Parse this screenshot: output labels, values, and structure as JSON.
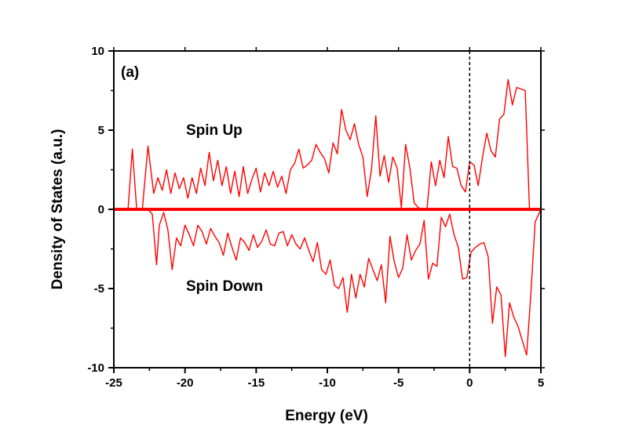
{
  "chart_data": {
    "type": "line",
    "panel_label": "(a)",
    "xlabel": "Energy (eV)",
    "ylabel": "Density of States (a.u.)",
    "xlim": [
      -25,
      5
    ],
    "ylim": [
      -10,
      10
    ],
    "x_ticks": [
      -25,
      -20,
      -15,
      -10,
      -5,
      0,
      5
    ],
    "y_ticks": [
      -10,
      -5,
      0,
      5,
      10
    ],
    "fermi_level": 0,
    "annotations": {
      "spin_up": "Spin Up",
      "spin_down": "Spin Down"
    },
    "colors": {
      "series": "#ff0000",
      "fermi": "#000000",
      "axes": "#000000"
    },
    "series": [
      {
        "name": "Spin Up",
        "x": [
          -25,
          -24,
          -23.7,
          -23.4,
          -23,
          -22.6,
          -22.2,
          -21.9,
          -21.6,
          -21.3,
          -21,
          -20.7,
          -20.4,
          -20.1,
          -19.8,
          -19.5,
          -19.2,
          -18.9,
          -18.6,
          -18.3,
          -18,
          -17.7,
          -17.4,
          -17.1,
          -16.8,
          -16.5,
          -16.2,
          -15.9,
          -15.6,
          -15.3,
          -15,
          -14.7,
          -14.4,
          -14.1,
          -13.8,
          -13.5,
          -13.2,
          -12.9,
          -12.6,
          -12.3,
          -12,
          -11.7,
          -11.4,
          -11.1,
          -10.8,
          -10.5,
          -10.2,
          -9.9,
          -9.6,
          -9.3,
          -9,
          -8.7,
          -8.4,
          -8.1,
          -7.8,
          -7.5,
          -7.2,
          -6.9,
          -6.6,
          -6.3,
          -6,
          -5.7,
          -5.4,
          -5.1,
          -4.8,
          -4.5,
          -4.2,
          -3.9,
          -3.6,
          -3.3,
          -3,
          -2.7,
          -2.4,
          -2.1,
          -1.8,
          -1.5,
          -1.2,
          -0.9,
          -0.6,
          -0.3,
          0,
          0.3,
          0.6,
          0.9,
          1.2,
          1.5,
          1.8,
          2.1,
          2.4,
          2.7,
          3,
          3.3,
          3.6,
          3.9,
          4.2,
          4.5,
          5
        ],
        "values": [
          0,
          0,
          3.8,
          0.1,
          0,
          4,
          1,
          2,
          1.2,
          2.5,
          1,
          2.3,
          1.3,
          2,
          0.7,
          2,
          1,
          2.6,
          1.5,
          3.6,
          1.8,
          3.1,
          1.5,
          2.7,
          1,
          2.4,
          0.8,
          2.7,
          1,
          1.9,
          2.6,
          1.1,
          2.3,
          1.5,
          2.4,
          1.4,
          2.1,
          1,
          2.5,
          2.9,
          3.8,
          2.6,
          2.8,
          3.1,
          4.1,
          3.6,
          3.2,
          2.3,
          4.2,
          3.5,
          6.3,
          5,
          4.4,
          5.4,
          4.1,
          3.3,
          0.8,
          2.5,
          5.9,
          2.1,
          3.4,
          1.7,
          3.3,
          2.6,
          0.1,
          4.1,
          2.6,
          0.4,
          0.1,
          0,
          0,
          3,
          1.5,
          3.1,
          2,
          4.6,
          2.7,
          2.6,
          1.5,
          1.1,
          3,
          2.8,
          1.5,
          3.3,
          4.8,
          3.7,
          3.3,
          5.7,
          6,
          8.2,
          6.6,
          7.7,
          7.6,
          7.5,
          0,
          0,
          0
        ]
      },
      {
        "name": "Spin Down",
        "x": [
          -25,
          -22.6,
          -22.3,
          -22,
          -21.8,
          -21.5,
          -21.2,
          -20.9,
          -20.6,
          -20.3,
          -20,
          -19.7,
          -19.4,
          -19.1,
          -18.8,
          -18.5,
          -18.2,
          -17.9,
          -17.6,
          -17.3,
          -17,
          -16.7,
          -16.4,
          -16.1,
          -15.8,
          -15.5,
          -15.2,
          -14.9,
          -14.6,
          -14.3,
          -14,
          -13.7,
          -13.4,
          -13.1,
          -12.8,
          -12.5,
          -12.2,
          -11.9,
          -11.6,
          -11.3,
          -11,
          -10.7,
          -10.4,
          -10.1,
          -9.8,
          -9.5,
          -9.2,
          -8.9,
          -8.6,
          -8.3,
          -8,
          -7.7,
          -7.4,
          -7.1,
          -6.8,
          -6.5,
          -6.2,
          -5.9,
          -5.6,
          -5.3,
          -5,
          -4.7,
          -4.4,
          -4.1,
          -3.8,
          -3.5,
          -3.2,
          -2.9,
          -2.6,
          -2.3,
          -2,
          -1.7,
          -1.4,
          -1.1,
          -0.8,
          -0.5,
          -0.2,
          0.1,
          0.4,
          0.7,
          1,
          1.3,
          1.6,
          1.9,
          2.2,
          2.5,
          2.8,
          3.1,
          3.4,
          3.7,
          4,
          4.3,
          4.6,
          5
        ],
        "values": [
          0,
          0,
          -0.3,
          -3.5,
          -1,
          -0.2,
          -1.3,
          -3.8,
          -1.8,
          -2.3,
          -1,
          -1.6,
          -2.3,
          -1,
          -1.4,
          -2.2,
          -1.2,
          -1.7,
          -2.1,
          -2.9,
          -1.5,
          -2.4,
          -3.2,
          -1.8,
          -2.1,
          -2.6,
          -1.6,
          -2.4,
          -2,
          -1.3,
          -2.2,
          -2.3,
          -1.5,
          -1.4,
          -2.3,
          -1.6,
          -2.2,
          -2.5,
          -1.8,
          -2.6,
          -3.3,
          -2.1,
          -3.8,
          -4.1,
          -3.2,
          -4.8,
          -5,
          -4.3,
          -6.5,
          -4.1,
          -5.6,
          -4.1,
          -4.9,
          -3.1,
          -3.8,
          -4.5,
          -3.5,
          -5.9,
          -1.7,
          -3.3,
          -4.3,
          -3.7,
          -1.6,
          -3.2,
          -2.6,
          -2.2,
          -0.7,
          -4.4,
          -3.4,
          -3.6,
          -0.5,
          -1.1,
          -0.3,
          -1.6,
          -2.4,
          -4.4,
          -4.3,
          -2.7,
          -2.4,
          -2.2,
          -2.1,
          -3,
          -7.2,
          -4.9,
          -5.4,
          -9.3,
          -5.9,
          -6.8,
          -7.4,
          -8.3,
          -9.2,
          -5.3,
          -0.8,
          0
        ]
      }
    ]
  }
}
